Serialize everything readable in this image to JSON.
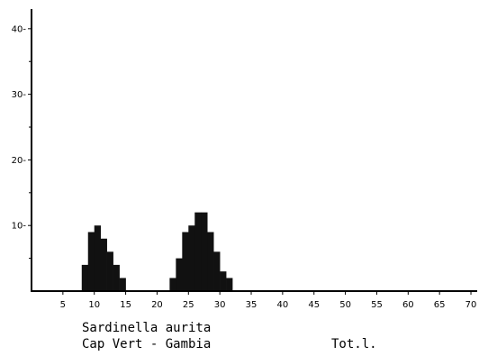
{
  "caption": {
    "species": "Sardinella aurita",
    "region": "Cap Vert - Gambia",
    "measure": "Tot.l."
  },
  "chart_data": {
    "type": "bar",
    "xlabel": "",
    "ylabel": "",
    "xlim": [
      0,
      71
    ],
    "ylim": [
      0,
      43
    ],
    "grid": false,
    "x_ticks": [
      5,
      10,
      15,
      20,
      25,
      30,
      35,
      40,
      45,
      50,
      55,
      60,
      65,
      70
    ],
    "y_ticks": [
      10,
      20,
      30,
      40
    ],
    "y_minor_ticks": [
      5,
      15,
      25,
      35
    ],
    "bin_width": 1,
    "x": [
      8,
      9,
      10,
      11,
      12,
      13,
      14,
      22,
      23,
      24,
      25,
      26,
      27,
      28,
      29,
      30,
      31
    ],
    "values": [
      4,
      9,
      10,
      8,
      6,
      4,
      2,
      2,
      5,
      9,
      10,
      12,
      12,
      9,
      6,
      3,
      2
    ],
    "color": "#111111"
  }
}
